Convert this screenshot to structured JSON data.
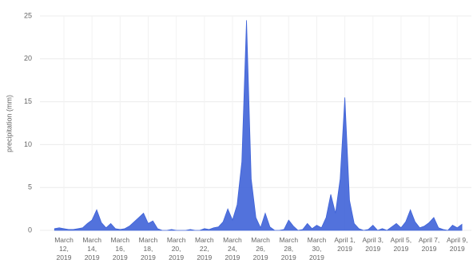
{
  "chart_data": {
    "type": "area",
    "y_label": "precipitation (mm)",
    "categories": [
      null,
      null,
      "March 12, 2019",
      null,
      null,
      null,
      null,
      null,
      "March 14, 2019",
      null,
      null,
      null,
      null,
      null,
      "March 16, 2019",
      null,
      null,
      null,
      null,
      null,
      "March 18, 2019",
      null,
      null,
      null,
      null,
      null,
      "March 20, 2019",
      null,
      null,
      null,
      null,
      null,
      "March 22, 2019",
      null,
      null,
      null,
      null,
      null,
      "March 24, 2019",
      null,
      null,
      null,
      null,
      null,
      "March 26, 2019",
      null,
      null,
      null,
      null,
      null,
      "March 28, 2019",
      null,
      null,
      null,
      null,
      null,
      "March 30, 2019",
      null,
      null,
      null,
      null,
      null,
      "April 1, 2019",
      null,
      null,
      null,
      null,
      null,
      "April 3, 2019",
      null,
      null,
      null,
      null,
      null,
      "April 5, 2019",
      null,
      null,
      null,
      null,
      null,
      "April 7, 2019",
      null,
      null,
      null,
      null,
      null,
      "April 9, 2019",
      null
    ],
    "values": [
      0.2,
      0.3,
      0.2,
      0.1,
      0.1,
      0.2,
      0.3,
      0.8,
      1.2,
      2.4,
      0.9,
      0.3,
      0.8,
      0.2,
      0.1,
      0.2,
      0.5,
      1.0,
      1.5,
      2.0,
      0.8,
      1.1,
      0.2,
      0,
      0,
      0.1,
      0,
      0,
      0,
      0.1,
      0,
      0,
      0.2,
      0.1,
      0.3,
      0.4,
      1.0,
      2.5,
      1.2,
      3.0,
      8.0,
      24.5,
      6.0,
      1.5,
      0.3,
      2.0,
      0.4,
      0,
      0,
      0.1,
      1.2,
      0.5,
      0,
      0.1,
      0.8,
      0.2,
      0.6,
      0.3,
      1.5,
      4.2,
      2.0,
      6.0,
      15.5,
      3.5,
      0.8,
      0.2,
      0,
      0.1,
      0.6,
      0,
      0.2,
      0,
      0.4,
      0.8,
      0.3,
      1.0,
      2.4,
      1.0,
      0.3,
      0.5,
      0.9,
      1.5,
      0.3,
      0.1,
      0,
      0.6,
      0.3,
      0.7
    ],
    "color": "#3f63d8",
    "ylim": [
      0,
      25
    ],
    "yticks": [
      0,
      5,
      10,
      15,
      20,
      25
    ],
    "grid": true
  }
}
